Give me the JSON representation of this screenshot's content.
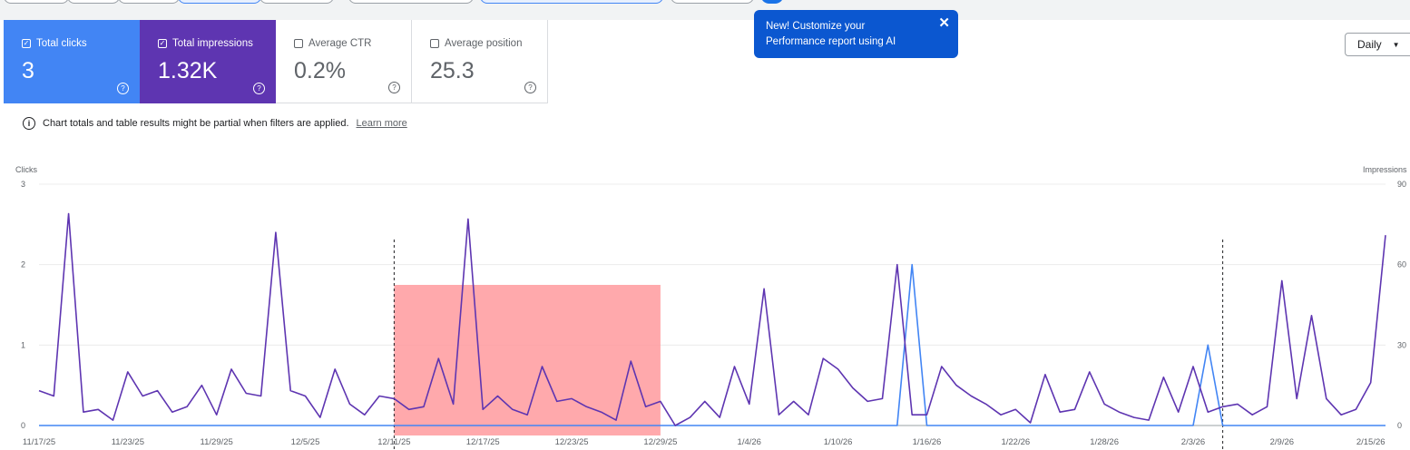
{
  "cards": {
    "clicks": {
      "label": "Total clicks",
      "value": "3",
      "checked": true
    },
    "impressions": {
      "label": "Total impressions",
      "value": "1.32K",
      "checked": true
    },
    "ctr": {
      "label": "Average CTR",
      "value": "0.2%",
      "checked": false
    },
    "position": {
      "label": "Average position",
      "value": "25.3",
      "checked": false
    }
  },
  "tooltip": {
    "text_line1": "New! Customize your",
    "text_line2": "Performance report using AI",
    "close": "✕"
  },
  "granularity": {
    "label": "Daily"
  },
  "notice": {
    "text": "Chart totals and table results might be partial when filters are applied.",
    "link": "Learn more"
  },
  "colors": {
    "clicks": "#4285f4",
    "impressions": "#5e35b1",
    "highlight": "#ff9a9e"
  },
  "chart_data": {
    "type": "line",
    "left_axis_label": "Clicks",
    "right_axis_label": "Impressions",
    "left_ticks": [
      "3",
      "2",
      "1",
      "0"
    ],
    "right_ticks": [
      "90",
      "60",
      "30",
      "0"
    ],
    "ylim_left": [
      0,
      3
    ],
    "ylim_right": [
      0,
      90
    ],
    "x_ticks": [
      "11/17/25",
      "11/23/25",
      "11/29/25",
      "12/5/25",
      "12/11/25",
      "12/17/25",
      "12/23/25",
      "12/29/25",
      "1/4/26",
      "1/10/26",
      "1/16/26",
      "1/22/26",
      "1/28/26",
      "2/3/26",
      "2/9/26",
      "2/15/26"
    ],
    "start_date": "11/17/25",
    "num_days": 92,
    "annotation_dates": [
      "12/11/25",
      "2/5/26"
    ],
    "highlight_range": [
      "12/11/25",
      "12/29/25"
    ],
    "series": [
      {
        "name": "Clicks",
        "axis": "left",
        "values": [
          0,
          0,
          0,
          0,
          0,
          0,
          0,
          0,
          0,
          0,
          0,
          0,
          0,
          0,
          0,
          0,
          0,
          0,
          0,
          0,
          0,
          0,
          0,
          0,
          0,
          0,
          0,
          0,
          0,
          0,
          0,
          0,
          0,
          0,
          0,
          0,
          0,
          0,
          0,
          0,
          0,
          0,
          0,
          0,
          0,
          0,
          0,
          0,
          0,
          0,
          0,
          0,
          0,
          0,
          0,
          0,
          0,
          0,
          0,
          2,
          0,
          0,
          0,
          0,
          0,
          0,
          0,
          0,
          0,
          0,
          0,
          0,
          0,
          0,
          0,
          0,
          0,
          0,
          0,
          1,
          0,
          0,
          0,
          0,
          0,
          0,
          0,
          0,
          0,
          0,
          0,
          0
        ]
      },
      {
        "name": "Impressions",
        "axis": "right",
        "values": [
          13,
          11,
          79,
          5,
          6,
          2,
          20,
          11,
          13,
          5,
          7,
          15,
          4,
          21,
          12,
          11,
          72,
          13,
          11,
          3,
          21,
          8,
          4,
          11,
          10,
          6,
          7,
          25,
          8,
          77,
          6,
          11,
          6,
          4,
          22,
          9,
          10,
          7,
          5,
          2,
          24,
          7,
          9,
          0,
          3,
          9,
          3,
          22,
          8,
          51,
          4,
          9,
          4,
          25,
          21,
          14,
          9,
          10,
          60,
          4,
          4,
          22,
          15,
          11,
          8,
          4,
          6,
          1,
          19,
          5,
          6,
          20,
          8,
          5,
          3,
          2,
          18,
          5,
          22,
          5,
          7,
          8,
          4,
          7,
          54,
          10,
          41,
          10,
          4,
          6,
          16,
          71
        ]
      }
    ]
  }
}
